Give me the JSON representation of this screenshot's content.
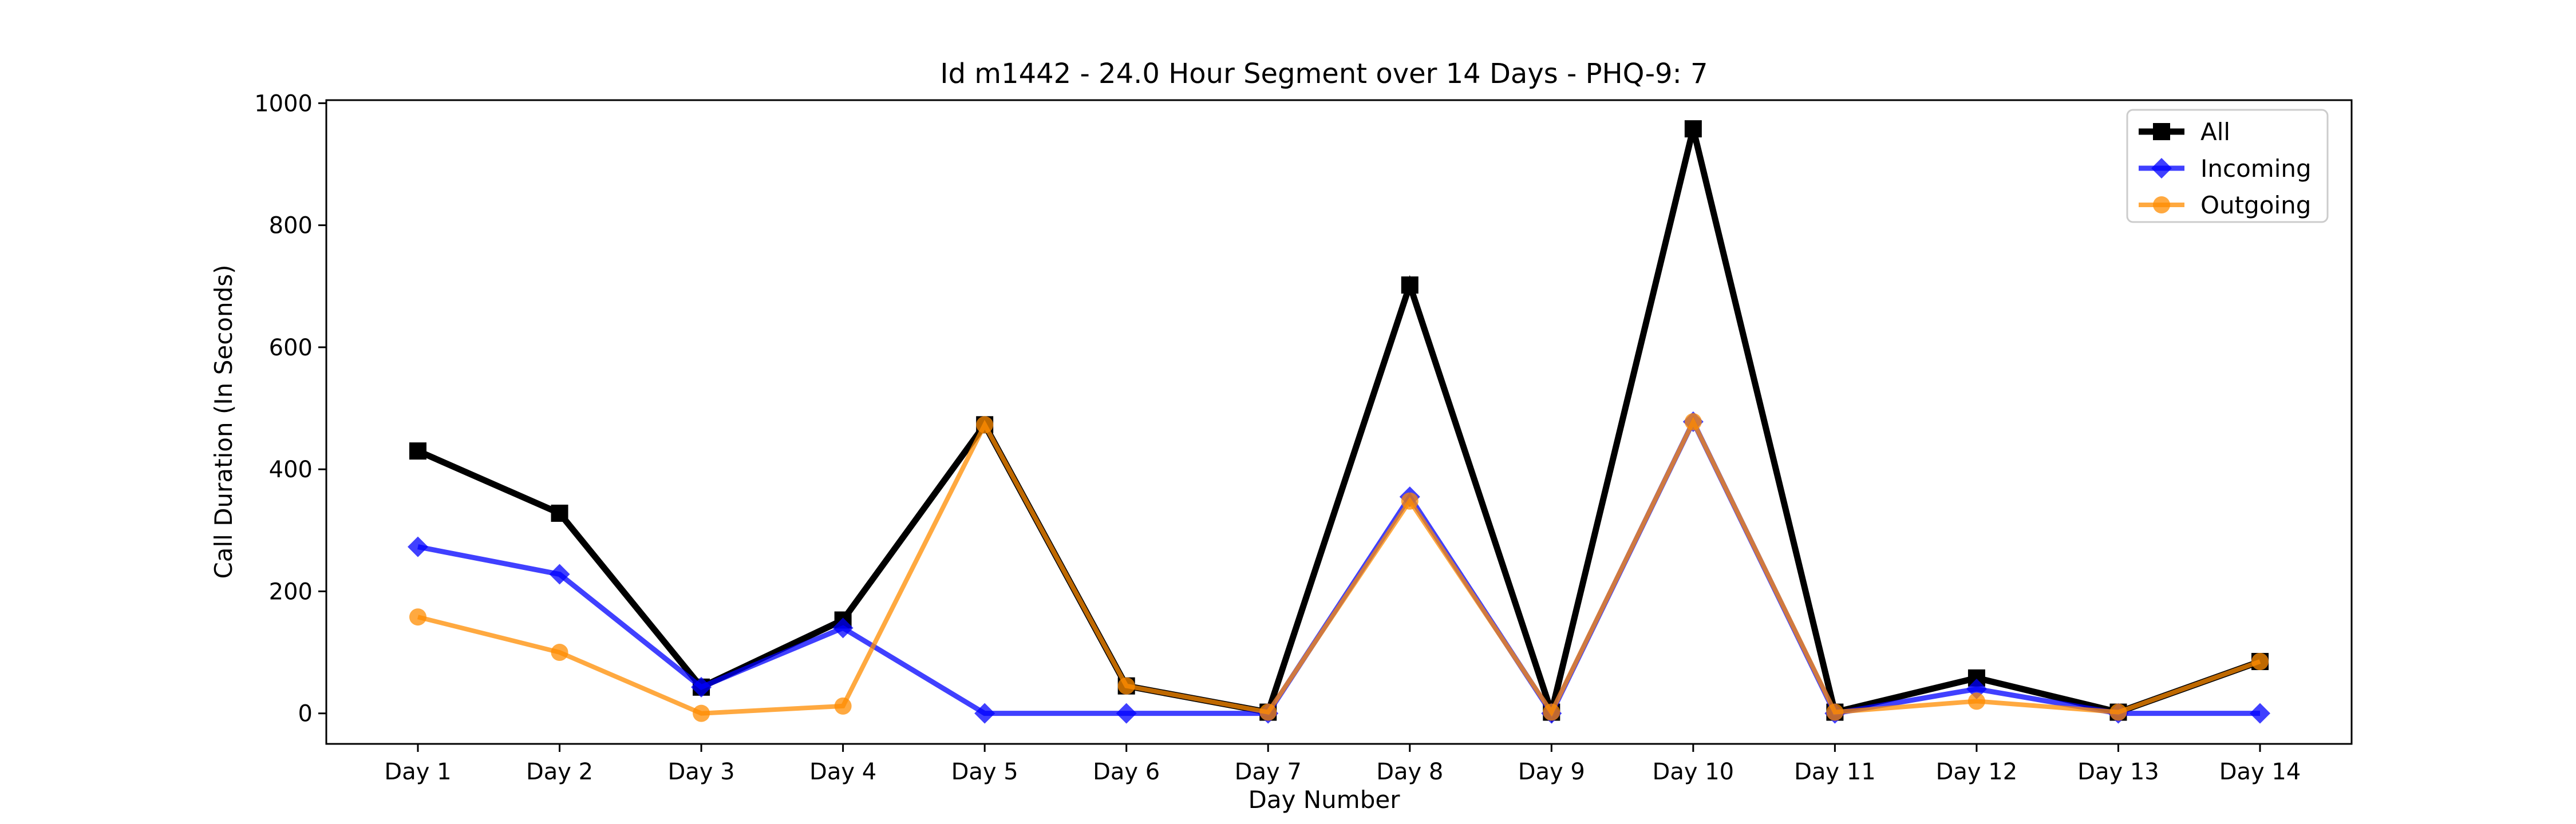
{
  "chart_data": {
    "type": "line",
    "title": "Id m1442 - 24.0 Hour Segment over 14 Days - PHQ-9: 7",
    "xlabel": "Day Number",
    "ylabel": "Call Duration (In Seconds)",
    "categories": [
      "Day 1",
      "Day 2",
      "Day 3",
      "Day 4",
      "Day 5",
      "Day 6",
      "Day 7",
      "Day 8",
      "Day 9",
      "Day 10",
      "Day 11",
      "Day 12",
      "Day 13",
      "Day 14"
    ],
    "ylim": [
      -50,
      1005
    ],
    "yticks": [
      0,
      200,
      400,
      600,
      800,
      1000
    ],
    "grid": false,
    "legend_position": "top-right",
    "series": [
      {
        "name": "All",
        "color": "#000000",
        "marker": "square",
        "values": [
          430,
          328,
          43,
          153,
          473,
          45,
          2,
          702,
          2,
          958,
          2,
          58,
          2,
          85
        ]
      },
      {
        "name": "Incoming",
        "color": "#0000ff",
        "marker": "diamond",
        "values": [
          273,
          228,
          43,
          140,
          0,
          0,
          0,
          355,
          0,
          478,
          0,
          40,
          0,
          0
        ]
      },
      {
        "name": "Outgoing",
        "color": "#ff8c00",
        "marker": "circle",
        "values": [
          158,
          100,
          0,
          12,
          473,
          45,
          2,
          348,
          2,
          478,
          2,
          20,
          2,
          85
        ]
      }
    ]
  }
}
